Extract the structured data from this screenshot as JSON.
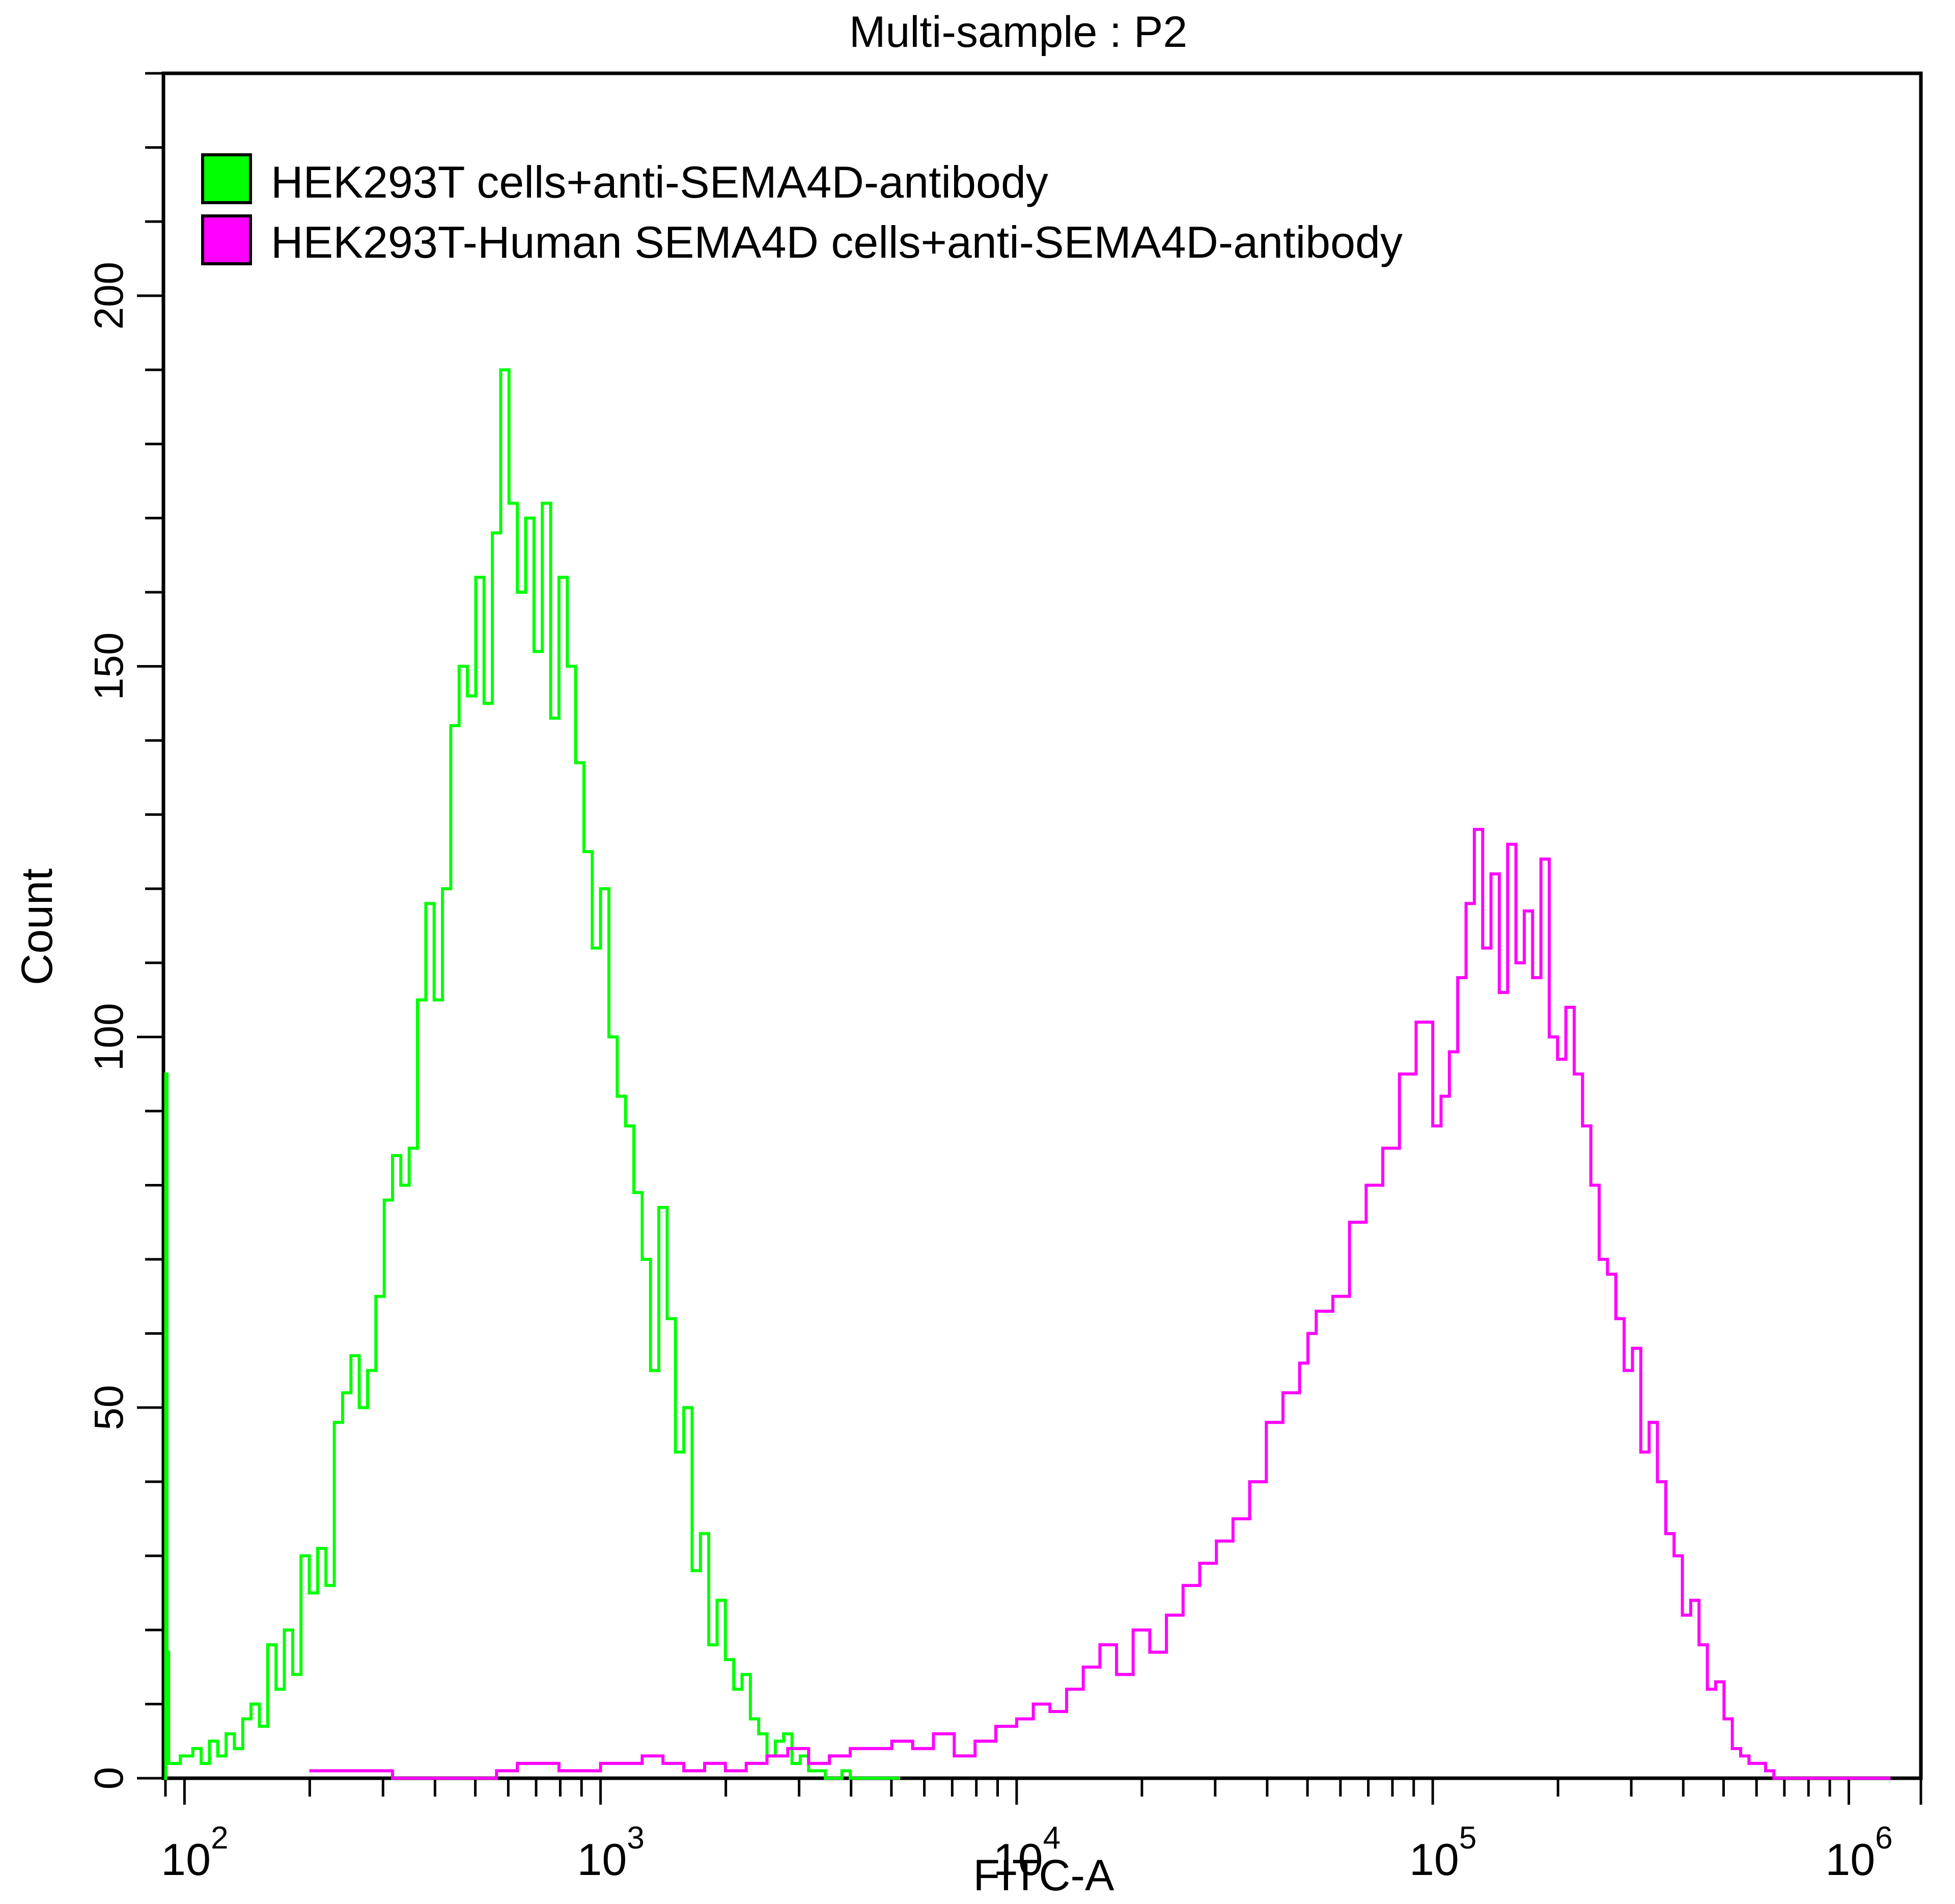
{
  "chart_data": {
    "type": "line",
    "subtype": "flow-cytometry-histogram-overlay",
    "title": "Multi-sample : P2",
    "xlabel": "FITC-A",
    "ylabel": "Count",
    "xscale": "log",
    "xlim": [
      89,
      1490000
    ],
    "ylim": [
      0,
      230
    ],
    "x_ticks": [
      {
        "value": 100,
        "base": "10",
        "exp": "2"
      },
      {
        "value": 1000,
        "base": "10",
        "exp": "3"
      },
      {
        "value": 10000,
        "base": "10",
        "exp": "4"
      },
      {
        "value": 100000,
        "base": "10",
        "exp": "5"
      },
      {
        "value": 1000000,
        "base": "10",
        "exp": "6"
      }
    ],
    "y_ticks": [
      0,
      50,
      100,
      150,
      200
    ],
    "y_minor_step": 10,
    "grid": false,
    "legend": {
      "position": "top-left, inside plot",
      "entries": [
        {
          "label": "HEK293T cells+anti-SEMA4D-antibody",
          "color": "#00ff00"
        },
        {
          "label": "HEK293T-Human SEMA4D cells+anti-SEMA4D-antibody",
          "color": "#ff00ff"
        }
      ]
    },
    "series": [
      {
        "name": "HEK293T cells+anti-SEMA4D-antibody",
        "color": "#00ff00",
        "x_log10": [
          1.951,
          1.955,
          1.958,
          1.962,
          1.975,
          1.99,
          2.0,
          2.02,
          2.04,
          2.06,
          2.08,
          2.1,
          2.12,
          2.14,
          2.16,
          2.18,
          2.2,
          2.22,
          2.24,
          2.26,
          2.28,
          2.3,
          2.32,
          2.34,
          2.36,
          2.38,
          2.4,
          2.42,
          2.44,
          2.46,
          2.48,
          2.5,
          2.52,
          2.54,
          2.56,
          2.58,
          2.6,
          2.62,
          2.64,
          2.66,
          2.68,
          2.7,
          2.72,
          2.74,
          2.76,
          2.78,
          2.8,
          2.82,
          2.84,
          2.86,
          2.88,
          2.9,
          2.92,
          2.94,
          2.96,
          2.98,
          3.0,
          3.02,
          3.04,
          3.06,
          3.08,
          3.1,
          3.12,
          3.14,
          3.16,
          3.18,
          3.2,
          3.22,
          3.24,
          3.26,
          3.28,
          3.3,
          3.32,
          3.34,
          3.36,
          3.38,
          3.4,
          3.42,
          3.44,
          3.46,
          3.48,
          3.5,
          3.52,
          3.54,
          3.56,
          3.58,
          3.6,
          3.62,
          3.64,
          3.66,
          3.68,
          3.7,
          3.72
        ],
        "counts": [
          0,
          95,
          17,
          2,
          2,
          3,
          3,
          4,
          2,
          5,
          3,
          6,
          4,
          8,
          10,
          7,
          18,
          12,
          20,
          14,
          30,
          25,
          31,
          26,
          48,
          52,
          57,
          50,
          55,
          65,
          78,
          84,
          80,
          85,
          105,
          118,
          105,
          120,
          142,
          150,
          146,
          162,
          145,
          168,
          190,
          172,
          160,
          170,
          152,
          172,
          143,
          162,
          150,
          137,
          125,
          112,
          120,
          100,
          92,
          88,
          79,
          70,
          55,
          77,
          62,
          44,
          50,
          28,
          33,
          18,
          24,
          16,
          12,
          14,
          8,
          6,
          3,
          5,
          6,
          2,
          3,
          1,
          1,
          0,
          0,
          1,
          0,
          0,
          0,
          0,
          0,
          0,
          0
        ]
      },
      {
        "name": "HEK293T-Human SEMA4D cells+anti-SEMA4D-antibody",
        "color": "#ff00ff",
        "x_log10": [
          2.3,
          2.5,
          2.75,
          2.8,
          2.9,
          3.0,
          3.05,
          3.1,
          3.15,
          3.2,
          3.25,
          3.3,
          3.35,
          3.4,
          3.45,
          3.5,
          3.55,
          3.6,
          3.65,
          3.7,
          3.75,
          3.8,
          3.85,
          3.9,
          3.95,
          4.0,
          4.04,
          4.08,
          4.12,
          4.16,
          4.2,
          4.24,
          4.28,
          4.32,
          4.36,
          4.4,
          4.44,
          4.48,
          4.52,
          4.56,
          4.6,
          4.64,
          4.68,
          4.7,
          4.72,
          4.76,
          4.8,
          4.84,
          4.88,
          4.92,
          4.96,
          5.0,
          5.02,
          5.04,
          5.06,
          5.08,
          5.1,
          5.12,
          5.14,
          5.16,
          5.18,
          5.2,
          5.22,
          5.24,
          5.26,
          5.28,
          5.3,
          5.32,
          5.34,
          5.36,
          5.38,
          5.4,
          5.42,
          5.44,
          5.46,
          5.48,
          5.5,
          5.52,
          5.54,
          5.56,
          5.58,
          5.6,
          5.62,
          5.64,
          5.66,
          5.68,
          5.7,
          5.72,
          5.74,
          5.76,
          5.78,
          5.8,
          5.82,
          5.84,
          5.86,
          5.88,
          5.9,
          5.92,
          5.94,
          5.96,
          6.0,
          6.05,
          6.1
        ],
        "counts": [
          1,
          0,
          1,
          2,
          1,
          2,
          2,
          3,
          2,
          1,
          2,
          1,
          2,
          3,
          4,
          2,
          3,
          4,
          4,
          5,
          4,
          6,
          3,
          5,
          7,
          8,
          10,
          9,
          12,
          15,
          18,
          14,
          20,
          17,
          22,
          26,
          29,
          32,
          35,
          40,
          48,
          52,
          56,
          60,
          63,
          65,
          75,
          80,
          85,
          95,
          102,
          88,
          92,
          98,
          108,
          118,
          128,
          112,
          122,
          106,
          126,
          110,
          117,
          108,
          124,
          100,
          97,
          104,
          95,
          88,
          80,
          70,
          68,
          62,
          55,
          58,
          44,
          48,
          40,
          33,
          30,
          22,
          24,
          18,
          12,
          13,
          8,
          4,
          3,
          2,
          2,
          1,
          0,
          0,
          0,
          0,
          0,
          0,
          0,
          0,
          0,
          0,
          0
        ]
      }
    ]
  }
}
